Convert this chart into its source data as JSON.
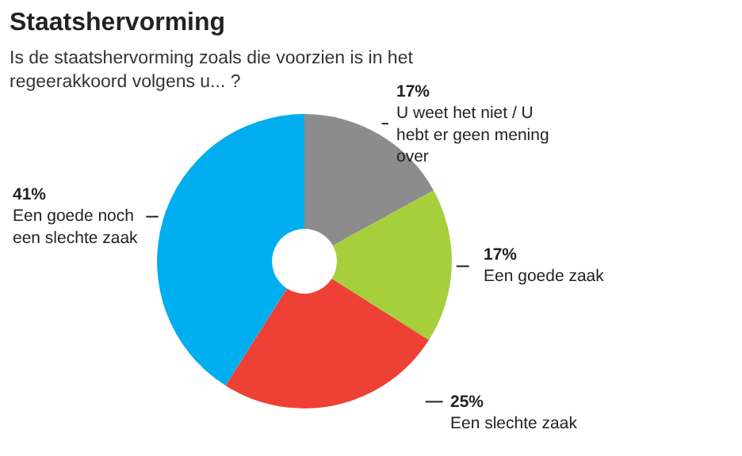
{
  "chart_data": {
    "type": "donut",
    "title": "Staatshervorming",
    "subtitle": "Is de staatshervorming zoals die voorzien is in het regeerakkoord volgens u... ?",
    "categories": [
      "U weet het niet / U hebt er geen mening over",
      "Een goede zaak",
      "Een slechte zaak",
      "Een goede noch een slechte zaak"
    ],
    "values": [
      17,
      17,
      25,
      41
    ],
    "value_labels": [
      "17%",
      "17%",
      "25%",
      "41%"
    ],
    "colors": [
      "#8c8c8c",
      "#a6cf3c",
      "#ee4035",
      "#00aeef"
    ]
  }
}
